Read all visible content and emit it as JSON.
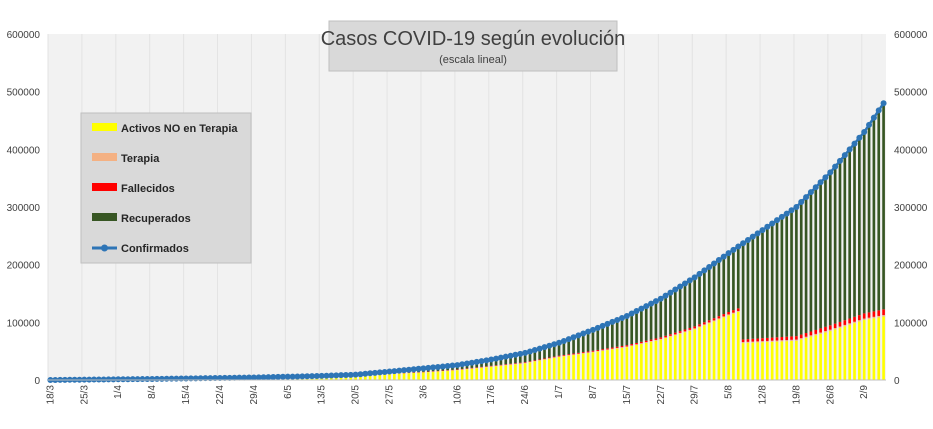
{
  "chart_data": {
    "type": "bar",
    "title": "Casos COVID-19 según evolución",
    "subtitle": "(escala lineal)",
    "ylim": [
      0,
      600000
    ],
    "yticks": [
      "0",
      "100000",
      "200000",
      "300000",
      "400000",
      "500000",
      "600000"
    ],
    "ytick_values": [
      0,
      100000,
      200000,
      300000,
      400000,
      500000,
      600000
    ],
    "xlabels": [
      "18/3",
      "25/3",
      "1/4",
      "8/4",
      "15/4",
      "22/4",
      "29/4",
      "6/5",
      "13/5",
      "20/5",
      "27/5",
      "3/6",
      "10/6",
      "17/6",
      "24/6",
      "1/7",
      "8/7",
      "15/7",
      "22/7",
      "29/7",
      "5/8",
      "12/8",
      "19/8",
      "26/8",
      "2/9"
    ],
    "x_start": "2020-03-18",
    "x_end": "2020-09-06",
    "legend_position": "top-left",
    "stacked": true,
    "grid": {
      "vertical": true,
      "horizontal": false
    },
    "series": [
      {
        "name": "Activos NO en Terapia",
        "color": "#ffff00",
        "kind": "bar"
      },
      {
        "name": "Terapia",
        "color": "#f4b183",
        "kind": "bar"
      },
      {
        "name": "Fallecidos",
        "color": "#ff0000",
        "kind": "bar"
      },
      {
        "name": "Recuperados",
        "color": "#375623",
        "kind": "bar"
      },
      {
        "name": "Confirmados",
        "color": "#2e75b6",
        "kind": "line"
      }
    ],
    "confirmed_checkpoints": [
      [
        "2020-03-18",
        0
      ],
      [
        "2020-04-08",
        1800
      ],
      [
        "2020-04-29",
        4400
      ],
      [
        "2020-05-13",
        7100
      ],
      [
        "2020-05-20",
        9300
      ],
      [
        "2020-05-27",
        14700
      ],
      [
        "2020-06-03",
        20200
      ],
      [
        "2020-06-10",
        25900
      ],
      [
        "2020-06-17",
        35500
      ],
      [
        "2020-06-24",
        47000
      ],
      [
        "2020-07-01",
        64500
      ],
      [
        "2020-07-08",
        87000
      ],
      [
        "2020-07-15",
        111000
      ],
      [
        "2020-07-22",
        141000
      ],
      [
        "2020-07-29",
        178000
      ],
      [
        "2020-08-05",
        220000
      ],
      [
        "2020-08-12",
        260000
      ],
      [
        "2020-08-19",
        300000
      ],
      [
        "2020-08-26",
        360000
      ],
      [
        "2020-09-02",
        430000
      ],
      [
        "2020-09-06",
        480000
      ]
    ],
    "active_checkpoints": [
      [
        "2020-03-18",
        0
      ],
      [
        "2020-04-08",
        1200
      ],
      [
        "2020-04-29",
        2500
      ],
      [
        "2020-05-13",
        4500
      ],
      [
        "2020-05-20",
        6500
      ],
      [
        "2020-05-27",
        10000
      ],
      [
        "2020-06-03",
        13000
      ],
      [
        "2020-06-10",
        17000
      ],
      [
        "2020-06-17",
        23000
      ],
      [
        "2020-06-24",
        29000
      ],
      [
        "2020-07-01",
        40000
      ],
      [
        "2020-07-08",
        48000
      ],
      [
        "2020-07-15",
        57000
      ],
      [
        "2020-07-22",
        70000
      ],
      [
        "2020-07-29",
        88000
      ],
      [
        "2020-08-05",
        112000
      ],
      [
        "2020-08-07",
        118000
      ],
      [
        "2020-08-08",
        64000
      ],
      [
        "2020-08-19",
        68000
      ],
      [
        "2020-08-26",
        85000
      ],
      [
        "2020-09-02",
        104000
      ],
      [
        "2020-09-06",
        110000
      ]
    ],
    "terapia_checkpoints": [
      [
        "2020-03-18",
        0
      ],
      [
        "2020-05-01",
        150
      ],
      [
        "2020-06-01",
        400
      ],
      [
        "2020-07-01",
        900
      ],
      [
        "2020-08-01",
        1600
      ],
      [
        "2020-09-06",
        2600
      ]
    ],
    "fallecidos_checkpoints": [
      [
        "2020-03-18",
        0
      ],
      [
        "2020-04-08",
        70
      ],
      [
        "2020-05-13",
        350
      ],
      [
        "2020-06-10",
        700
      ],
      [
        "2020-07-01",
        1300
      ],
      [
        "2020-07-22",
        2600
      ],
      [
        "2020-08-05",
        4200
      ],
      [
        "2020-08-19",
        6000
      ],
      [
        "2020-09-02",
        9000
      ],
      [
        "2020-09-06",
        9900
      ]
    ]
  }
}
